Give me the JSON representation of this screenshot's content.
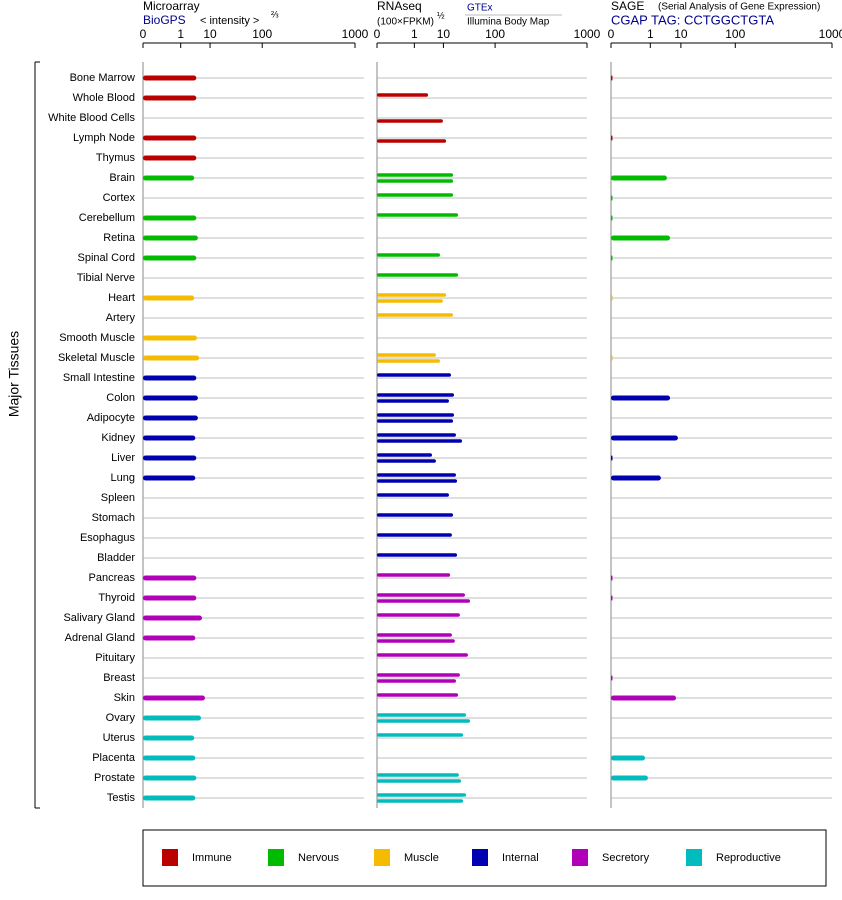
{
  "chart_data": {
    "type": "hbar_panels",
    "y_label": "Major Tissues",
    "categories": [
      "Bone Marrow",
      "Whole Blood",
      "White Blood Cells",
      "Lymph Node",
      "Thymus",
      "Brain",
      "Cortex",
      "Cerebellum",
      "Retina",
      "Spinal Cord",
      "Tibial Nerve",
      "Heart",
      "Artery",
      "Smooth Muscle",
      "Skeletal Muscle",
      "Small Intestine",
      "Colon",
      "Adipocyte",
      "Kidney",
      "Liver",
      "Lung",
      "Spleen",
      "Stomach",
      "Esophagus",
      "Bladder",
      "Pancreas",
      "Thyroid",
      "Salivary Gland",
      "Adrenal Gland",
      "Pituitary",
      "Breast",
      "Skin",
      "Ovary",
      "Uterus",
      "Placenta",
      "Prostate",
      "Testis"
    ],
    "category_groups": [
      0,
      0,
      0,
      0,
      0,
      1,
      1,
      1,
      1,
      1,
      1,
      2,
      2,
      2,
      2,
      3,
      3,
      3,
      3,
      3,
      3,
      3,
      3,
      3,
      3,
      4,
      4,
      4,
      4,
      4,
      4,
      4,
      5,
      5,
      5,
      5,
      5
    ],
    "legend": [
      {
        "name": "Immune",
        "color": "#bb0000"
      },
      {
        "name": "Nervous",
        "color": "#00bb00"
      },
      {
        "name": "Muscle",
        "color": "#f5bb00"
      },
      {
        "name": "Internal",
        "color": "#0000b0"
      },
      {
        "name": "Secretory",
        "color": "#b000b8"
      },
      {
        "name": "Reproductive",
        "color": "#00bcbc"
      }
    ],
    "panels": [
      {
        "title": "Microarray",
        "source": "BioGPS",
        "scale_label": "< intensity >",
        "scale_exponent_label": "⅔",
        "xscale": "pow",
        "exponent": 0.25,
        "xlim": [
          0,
          1000
        ],
        "xticks": [
          0,
          1,
          10,
          100,
          1000
        ],
        "series": [
          {
            "values": [
              4,
              4,
              null,
              4,
              4,
              3.4,
              null,
              4,
              4.5,
              4,
              null,
              3.4,
              null,
              4.2,
              4.9,
              4,
              4.5,
              4.5,
              3.7,
              4,
              3.7,
              null,
              null,
              null,
              null,
              4,
              4,
              6,
              3.7,
              null,
              null,
              7.3,
              5.6,
              3.4,
              3.7,
              4,
              3.7
            ]
          }
        ]
      },
      {
        "title": "RNAseq",
        "scale_label": "(100×FPKM)",
        "scale_exponent_label": "½",
        "xscale": "pow",
        "exponent": 0.25,
        "xlim": [
          0,
          1000
        ],
        "xticks": [
          0,
          1,
          10,
          100,
          1000
        ],
        "series": [
          {
            "name": "GTEx",
            "values": [
              null,
              3.5,
              null,
              null,
              null,
              17.2,
              17.2,
              22.2,
              null,
              8.1,
              22.2,
              11.7,
              17.2,
              null,
              6.2,
              15.4,
              18.1,
              18.1,
              20,
              4.7,
              20,
              13.8,
              17.2,
              16.2,
              21.1,
              14.7,
              30.8,
              24.3,
              16.2,
              35.2,
              24.3,
              22.2,
              32.3,
              28.3,
              null,
              23.1,
              32.3
            ]
          },
          {
            "name": "Illumina Body Map",
            "values": [
              null,
              null,
              9.7,
              11.7,
              null,
              17.2,
              null,
              null,
              null,
              null,
              null,
              9.7,
              null,
              null,
              8.1,
              null,
              13.8,
              17.2,
              26.9,
              6.2,
              21.1,
              null,
              null,
              null,
              null,
              null,
              38.5,
              null,
              18.9,
              null,
              20,
              null,
              38.5,
              null,
              null,
              25.6,
              28.3
            ]
          }
        ]
      },
      {
        "title": "SAGE",
        "subtitle": "(Serial Analysis of Gene Expression)",
        "source": "CGAP TAG: CCTGGCTGTA",
        "xscale": "pow",
        "exponent": 0.25,
        "xlim": [
          0,
          1000
        ],
        "xticks": [
          0,
          1,
          10,
          100,
          1000
        ],
        "series": [
          {
            "values": [
              0,
              null,
              null,
              0,
              null,
              4.1,
              0,
              0,
              5.1,
              0,
              null,
              0,
              null,
              null,
              0,
              null,
              5.1,
              null,
              8.4,
              0,
              2.6,
              null,
              null,
              null,
              null,
              0,
              0,
              null,
              null,
              null,
              0,
              7.5,
              null,
              null,
              0.56,
              0.78,
              null
            ]
          }
        ]
      }
    ]
  }
}
